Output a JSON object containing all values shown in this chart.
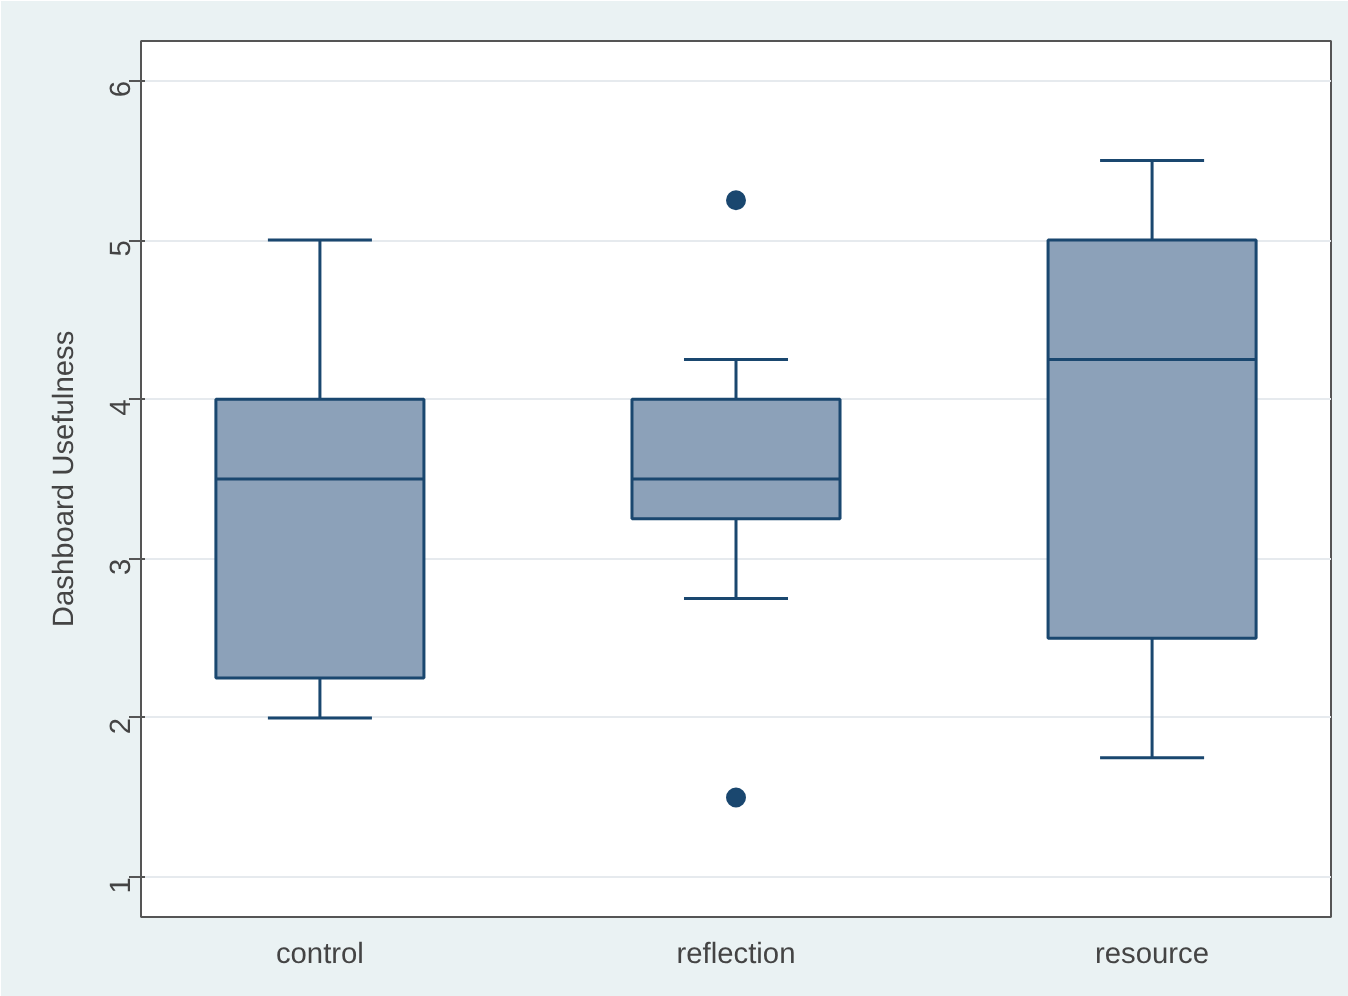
{
  "chart_data": {
    "type": "box",
    "ylabel": "Dashboard Usefulness",
    "categories": [
      "control",
      "reflection",
      "resource"
    ],
    "boxes": [
      {
        "low": 2,
        "q1": 2.25,
        "median": 3.5,
        "q3": 4,
        "high": 5
      },
      {
        "low": 2.75,
        "q1": 3.25,
        "median": 3.5,
        "q3": 4,
        "high": 4.25,
        "outliers": [
          5.25,
          1.5
        ]
      },
      {
        "low": 1.75,
        "q1": 2.5,
        "median": 4.25,
        "q3": 5,
        "high": 5.5
      }
    ],
    "color": "#8ca1b9",
    "ylim": [
      0.75,
      6.25
    ],
    "yticks": [
      1,
      2,
      3,
      4,
      5,
      6
    ],
    "grid": "y"
  }
}
